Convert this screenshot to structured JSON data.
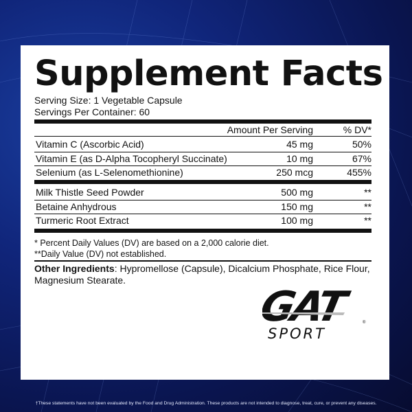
{
  "title": "Supplement Facts",
  "serving_size": "Serving Size: 1 Vegetable Capsule",
  "servings_per_container": "Servings Per Container: 60",
  "header": {
    "amount": "Amount Per Serving",
    "dv": "% DV*"
  },
  "group1": [
    {
      "name": "Vitamin C (Ascorbic Acid)",
      "amount": "45 mg",
      "dv": "50%"
    },
    {
      "name": "Vitamin E (as D-Alpha Tocopheryl Succinate)",
      "amount": "10 mg",
      "dv": "67%"
    },
    {
      "name": "Selenium (as L-Selenomethionine)",
      "amount": "250 mcg",
      "dv": "455%"
    }
  ],
  "group2": [
    {
      "name": "Milk Thistle Seed Powder",
      "amount": "500 mg",
      "dv": "**"
    },
    {
      "name": "Betaine Anhydrous",
      "amount": "150 mg",
      "dv": "**"
    },
    {
      "name": "Turmeric Root Extract",
      "amount": "100 mg",
      "dv": "**"
    }
  ],
  "footnotes": [
    "* Percent Daily Values (DV) are based on a 2,000 calorie diet.",
    "**Daily Value (DV) not established."
  ],
  "other_ingredients": {
    "label": "Other Ingredients",
    "text": ": Hypromellose (Capsule), Dicalcium Phosphate, Rice Flour, Magnesium Stearate."
  },
  "logo": {
    "brand": "GAT",
    "sub": "SPORT"
  },
  "disclaimer": "†These statements have not been evaluated by the Food and Drug Administration. These products are not intended to diagnose, treat, cure, or prevent any diseases."
}
